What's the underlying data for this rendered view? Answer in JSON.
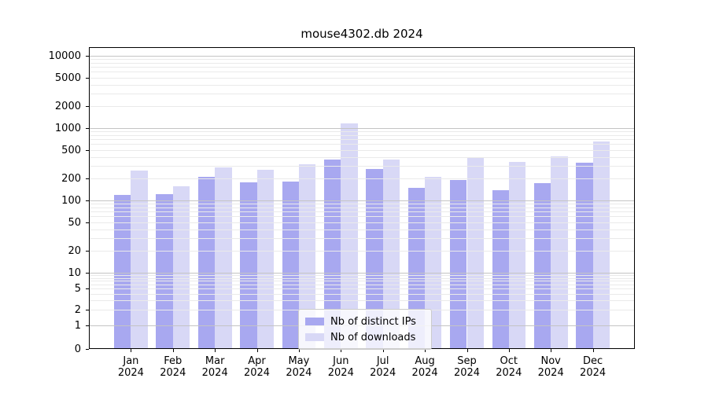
{
  "title": "mouse4302.db 2024",
  "chart_data": {
    "type": "bar",
    "title": "mouse4302.db 2024",
    "x_categories": [
      "Jan",
      "Feb",
      "Mar",
      "Apr",
      "May",
      "Jun",
      "Jul",
      "Aug",
      "Sep",
      "Oct",
      "Nov",
      "Dec"
    ],
    "x_year_label": "2024",
    "series": [
      {
        "name": "Nb of distinct IPs",
        "color": "#a8a8f0",
        "values": [
          118,
          123,
          214,
          178,
          184,
          369,
          274,
          151,
          193,
          137,
          175,
          334
        ]
      },
      {
        "name": "Nb of downloads",
        "color": "#d8d8f6",
        "values": [
          260,
          158,
          288,
          268,
          316,
          1160,
          370,
          214,
          388,
          343,
          408,
          655
        ]
      }
    ],
    "y_scale": "symlog",
    "y_tick_labels": [
      "10000",
      "5000",
      "2000",
      "1000",
      "500",
      "200",
      "100",
      "50",
      "20",
      "10",
      "5",
      "2",
      "1",
      "0"
    ],
    "ylim": [
      0,
      13000
    ],
    "grid": true,
    "legend_position": "lower center",
    "colors": {
      "major_grid": "#c4c4c4",
      "minor_grid": "#eaeaea",
      "axis": "#000000",
      "background": "#ffffff"
    }
  }
}
